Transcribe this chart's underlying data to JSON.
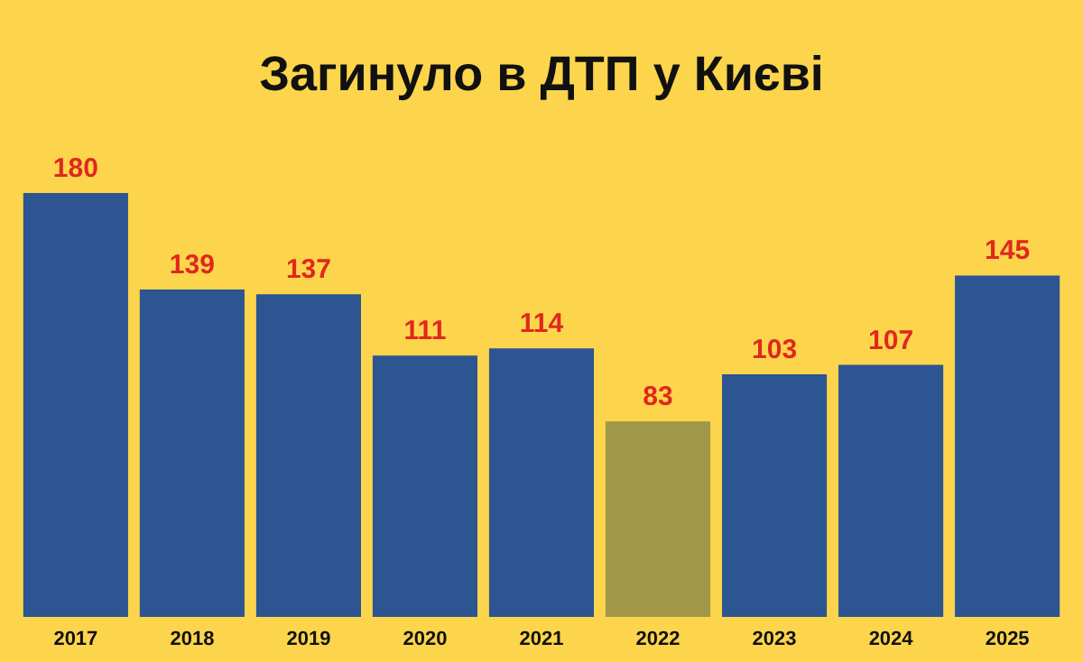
{
  "chart_data": {
    "type": "bar",
    "title": "Загинуло в ДТП у Києві",
    "categories": [
      "2017",
      "2018",
      "2019",
      "2020",
      "2021",
      "2022",
      "2023",
      "2024",
      "2025"
    ],
    "values": [
      180,
      139,
      137,
      111,
      114,
      83,
      103,
      107,
      145
    ],
    "colors": [
      "#2d5592",
      "#2d5592",
      "#2d5592",
      "#2d5592",
      "#2d5592",
      "#a09848",
      "#2d5592",
      "#2d5592",
      "#2d5592"
    ],
    "data_labels": true
  }
}
